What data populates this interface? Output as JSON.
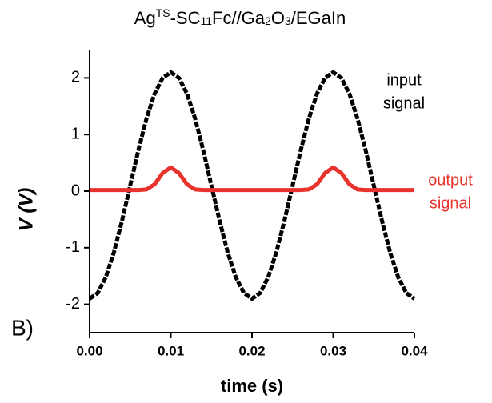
{
  "chart_data": {
    "type": "line",
    "title": [
      "Ag",
      "TS",
      "-SC",
      "11",
      "Fc//Ga",
      "2",
      "O",
      "3",
      "/EGaIn"
    ],
    "x_label": "time (s)",
    "y_label": "V (V)",
    "panel_label": "B)",
    "annotations": [
      {
        "lines": [
          "input",
          "signal"
        ],
        "color": "#000000"
      },
      {
        "lines": [
          "output",
          "signal"
        ],
        "color": "#e8322c"
      }
    ],
    "x": [
      0,
      0.001,
      0.002,
      0.003,
      0.004,
      0.005,
      0.006,
      0.007,
      0.008,
      0.009,
      0.01,
      0.011,
      0.012,
      0.013,
      0.014,
      0.015,
      0.016,
      0.017,
      0.018,
      0.019,
      0.02,
      0.021,
      0.022,
      0.023,
      0.024,
      0.025,
      0.026,
      0.027,
      0.028,
      0.029,
      0.03,
      0.031,
      0.032,
      0.033,
      0.034,
      0.035,
      0.036,
      0.037,
      0.038,
      0.039,
      0.04
    ],
    "series": [
      {
        "name": "input signal",
        "color": "#000000",
        "values": [
          -1.9,
          -1.8,
          -1.52,
          -1.08,
          -0.52,
          0.1,
          0.72,
          1.28,
          1.72,
          2.0,
          2.1,
          2.0,
          1.72,
          1.28,
          0.72,
          0.1,
          -0.52,
          -1.08,
          -1.52,
          -1.8,
          -1.9,
          -1.8,
          -1.52,
          -1.08,
          -0.52,
          0.1,
          0.72,
          1.28,
          1.72,
          2.0,
          2.1,
          2.0,
          1.72,
          1.28,
          0.72,
          0.1,
          -0.52,
          -1.08,
          -1.52,
          -1.8,
          -1.9
        ]
      },
      {
        "name": "output signal",
        "color": "#e8322c",
        "values": [
          0.02,
          0.02,
          0.02,
          0.02,
          0.02,
          0.02,
          0.02,
          0.03,
          0.12,
          0.32,
          0.42,
          0.32,
          0.12,
          0.03,
          0.02,
          0.02,
          0.02,
          0.02,
          0.02,
          0.02,
          0.02,
          0.02,
          0.02,
          0.02,
          0.02,
          0.02,
          0.02,
          0.03,
          0.12,
          0.32,
          0.42,
          0.32,
          0.12,
          0.03,
          0.02,
          0.02,
          0.02,
          0.02,
          0.02,
          0.02,
          0.02
        ]
      }
    ],
    "xlim": [
      0,
      0.04
    ],
    "xticks": [
      {
        "value": 0,
        "label": "0.00"
      },
      {
        "value": 0.01,
        "label": "0.01"
      },
      {
        "value": 0.02,
        "label": "0.02"
      },
      {
        "value": 0.03,
        "label": "0.03"
      },
      {
        "value": 0.04,
        "label": "0.04"
      }
    ],
    "ylim": [
      -2.5,
      2.5
    ],
    "yticks": [
      -2,
      -1,
      0,
      1,
      2
    ],
    "grid": false
  }
}
